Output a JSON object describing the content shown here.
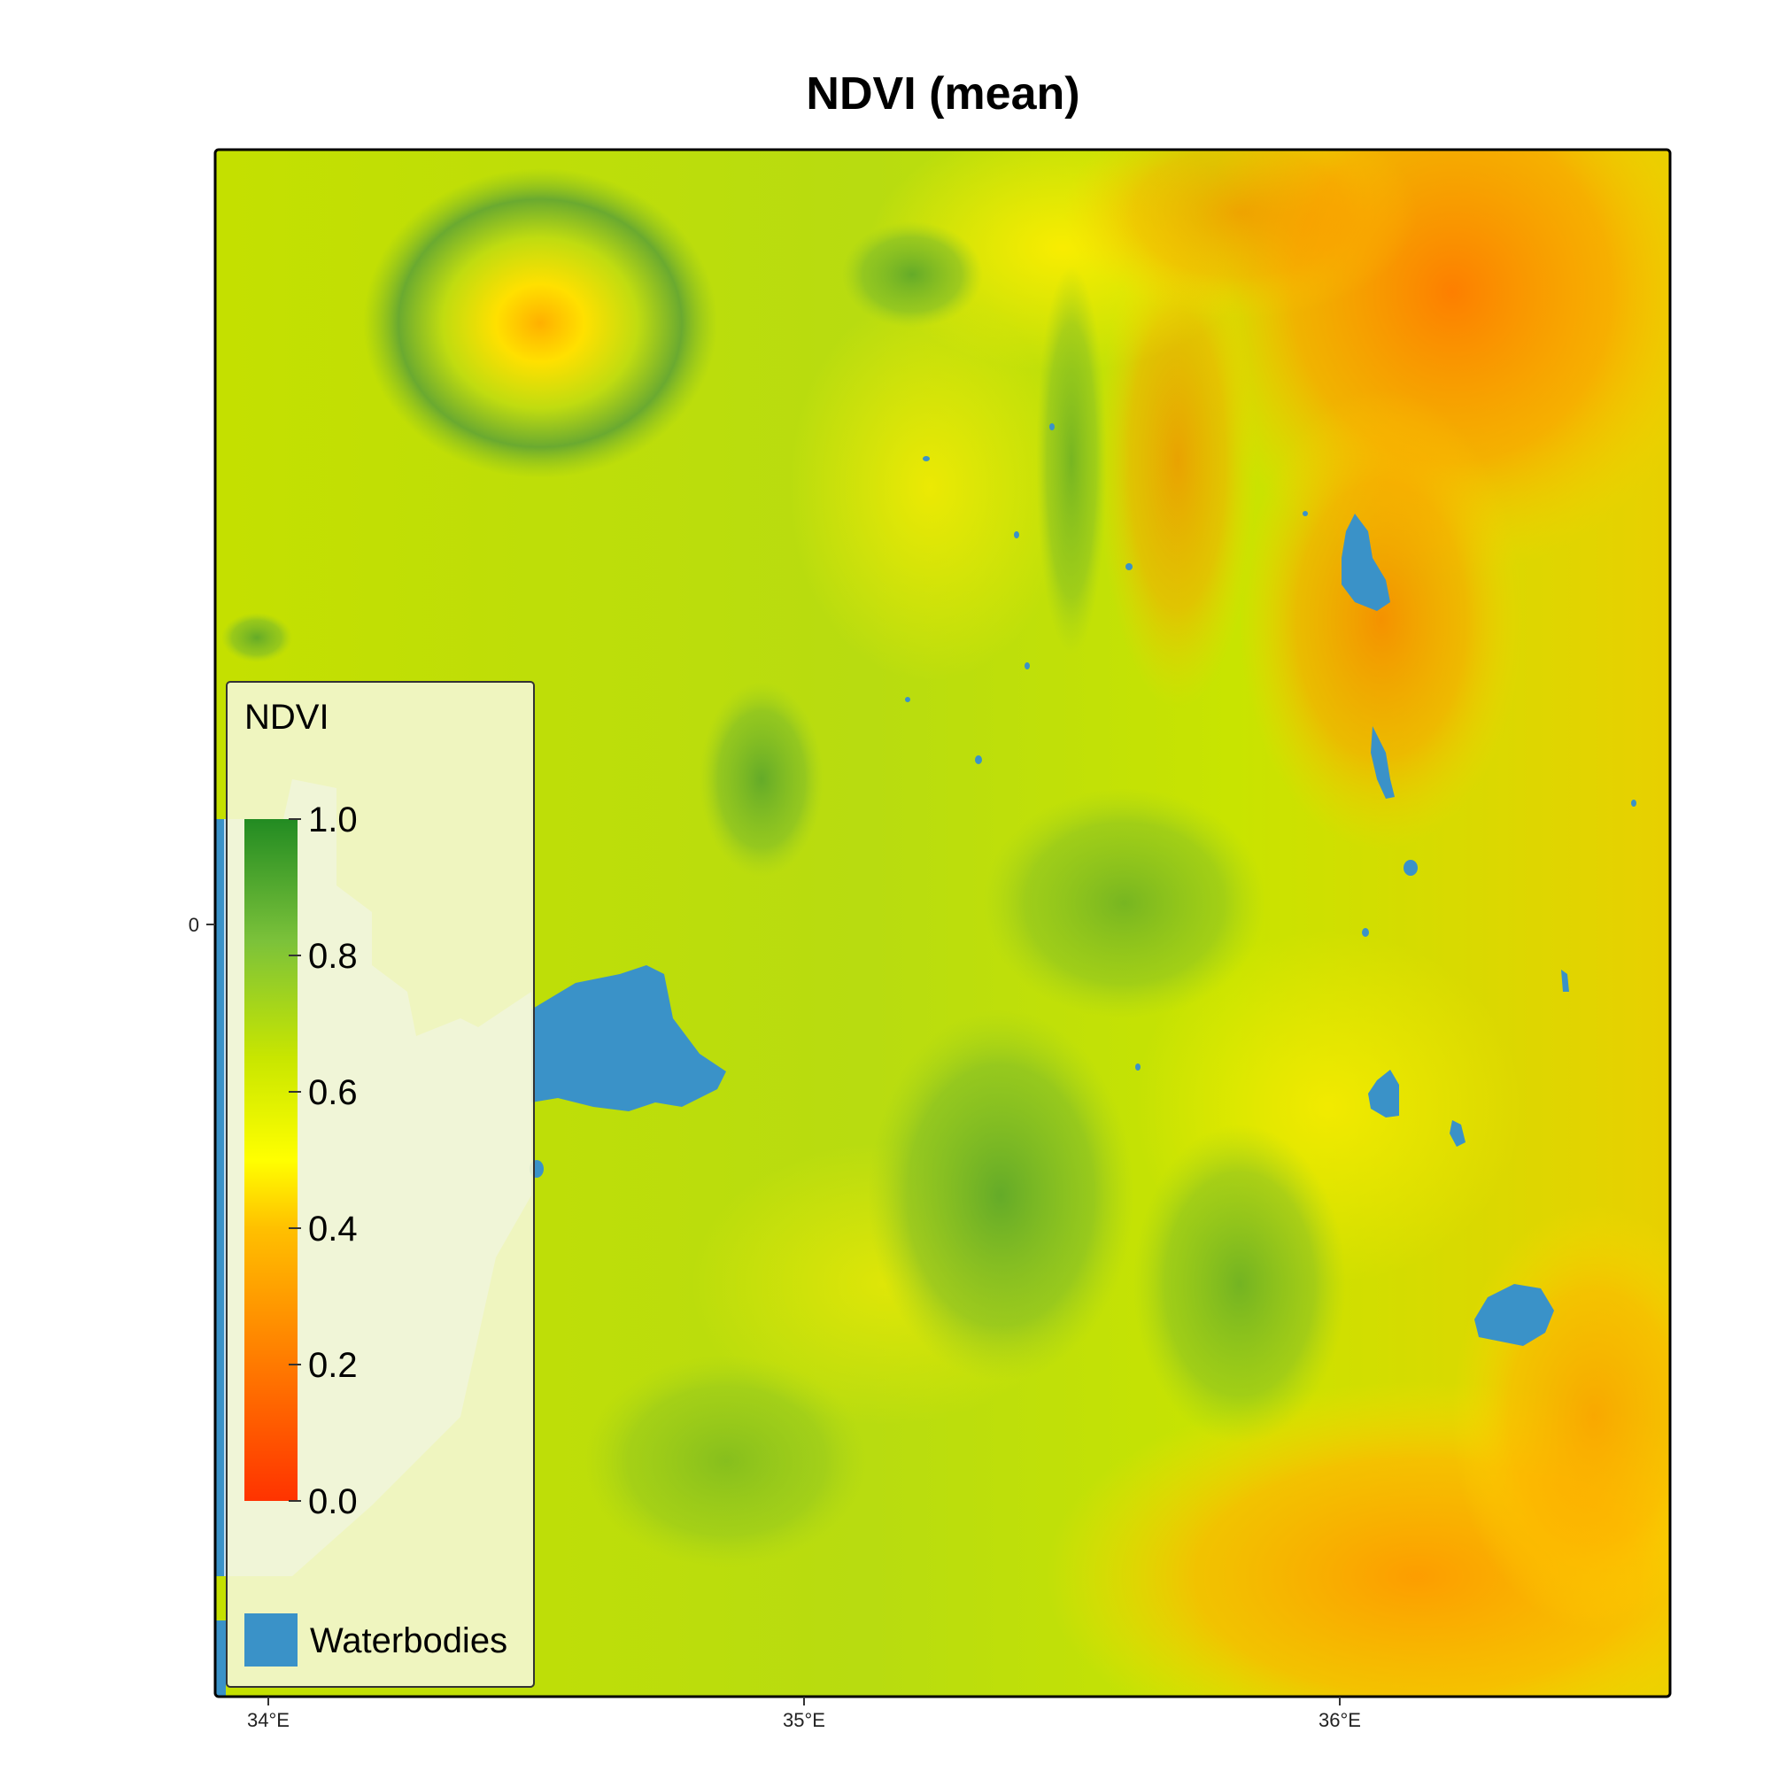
{
  "title": "NDVI (mean)",
  "axes": {
    "x_ticks": [
      {
        "value": 34,
        "label": "34°E"
      },
      {
        "value": 35,
        "label": "35°E"
      },
      {
        "value": 36,
        "label": "36°E"
      }
    ],
    "y_ticks": [
      {
        "value": 0,
        "label": "0"
      }
    ]
  },
  "legend": {
    "title": "NDVI",
    "scale_min": 0.0,
    "scale_max": 1.0,
    "ticks": [
      "0.0",
      "0.2",
      "0.4",
      "0.6",
      "0.8",
      "1.0"
    ],
    "colors": [
      "#ff3300",
      "#ff7a00",
      "#ffc000",
      "#ffff00",
      "#c8e600",
      "#7cc23a",
      "#228b22"
    ],
    "water_label": "Waterbodies",
    "water_color": "#3a92c8"
  },
  "colors": {
    "lake_victoria_ext": "#c6dff0",
    "frame": "#000000",
    "legend_bg": "#f4f7d4"
  }
}
